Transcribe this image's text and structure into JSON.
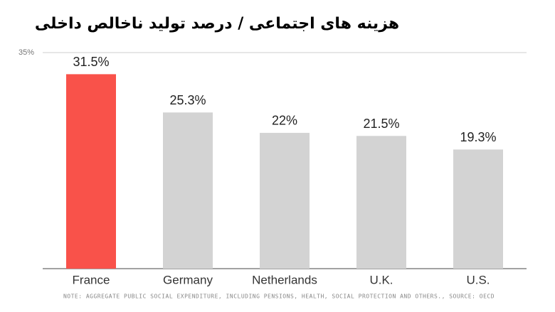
{
  "chart_data": {
    "type": "bar",
    "title": "هزینه های اجتماعی / درصد تولید ناخالص داخلی",
    "categories": [
      "France",
      "Germany",
      "Netherlands",
      "U.K.",
      "U.S."
    ],
    "values": [
      31.5,
      25.3,
      22,
      21.5,
      19.3
    ],
    "value_labels": [
      "31.5%",
      "25.3%",
      "22%",
      "21.5%",
      "19.3%"
    ],
    "colors": [
      "#f9524a",
      "#d3d3d3",
      "#d3d3d3",
      "#d3d3d3",
      "#d3d3d3"
    ],
    "ylim": [
      0,
      35
    ],
    "yticks": [
      {
        "value": 35,
        "label": "35%"
      }
    ],
    "grid": true,
    "note": "NOTE: AGGREGATE PUBLIC SOCIAL EXPENDITURE, INCLUDING PENSIONS, HEALTH, SOCIAL PROTECTION AND OTHERS., SOURCE: OECD"
  }
}
